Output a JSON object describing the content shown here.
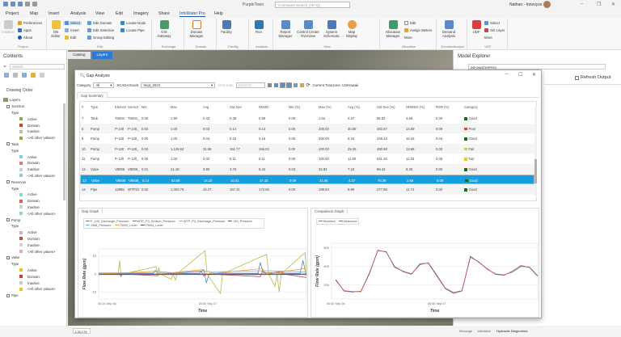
{
  "app": {
    "title": "PurpleTown",
    "search_placeholder": "Command Search (Alt+Q)",
    "user": "Nathan - Innovyze"
  },
  "ribbon_tabs": [
    "Project",
    "Map",
    "Insert",
    "Analysis",
    "View",
    "Edit",
    "Imagery",
    "Share",
    "InfoWater Pro",
    "Help"
  ],
  "ribbon": {
    "project": {
      "label": "Project",
      "initialize": "Initialize",
      "preferences": "Preferences",
      "apps": "Apps",
      "about": "About"
    },
    "edit": {
      "label": "Edit",
      "db_editor": "DB Editor",
      "select": "Select",
      "insert": "Insert",
      "edit": "Edit",
      "edit_domain": "Edit Domain",
      "edit_selection": "Edit Selection",
      "group_editing": "Group Editing",
      "locate_node": "Locate Node",
      "locate_pipe": "Locate Pipe"
    },
    "exchange": {
      "label": "Exchange",
      "gis_gateway": "GIS Gateway"
    },
    "domain": {
      "label": "Domain",
      "domain_manager": "Domain Manager"
    },
    "facility": {
      "label": "Facility",
      "facility": "Facility"
    },
    "analysis": {
      "label": "Analysis",
      "run": "Run"
    },
    "view": {
      "label": "View",
      "report_manager": "Report Manager",
      "control_center": "Control Center Overview",
      "system_schematic": "System Schematic",
      "map_display": "Map Display"
    },
    "allocation": {
      "label": "Allocation",
      "allocation_manager": "Allocation Manager",
      "edit": "Edit",
      "assign_meters": "Assign Meters",
      "more": "More"
    },
    "demand": {
      "label": "DemandAnalyst",
      "demand_analysis": "Demand Analysis"
    },
    "udf": {
      "label": "UDF",
      "udf": "UDF",
      "select": "Select",
      "set_layer": "Set Layer",
      "more": "More"
    }
  },
  "contents": {
    "title": "Contents",
    "search_placeholder": "Search",
    "drawing_order": "Drawing Order",
    "tree": [
      {
        "t": "root",
        "label": "Layers"
      },
      {
        "t": "layer",
        "label": "Junction"
      },
      {
        "t": "type",
        "label": "Type"
      },
      {
        "t": "sym",
        "label": "Active",
        "color": "#9aa83a"
      },
      {
        "t": "sym",
        "label": "Domain",
        "color": "#d83a2a"
      },
      {
        "t": "sym",
        "label": "Inactive",
        "color": "#bbbbbb"
      },
      {
        "t": "sym",
        "label": "<All other values>",
        "color": "#9aa83a"
      },
      {
        "t": "layer",
        "label": "Tank"
      },
      {
        "t": "type",
        "label": "Type"
      },
      {
        "t": "sym",
        "label": "Active",
        "color": "#8ec6e6"
      },
      {
        "t": "sym",
        "label": "Domain",
        "color": "#e07a6a"
      },
      {
        "t": "sym",
        "label": "Inactive",
        "color": "#d0d0d0"
      },
      {
        "t": "sym",
        "label": "<All other values>",
        "color": "#8ec6e6"
      },
      {
        "t": "layer",
        "label": "Reservoir"
      },
      {
        "t": "type",
        "label": "Type"
      },
      {
        "t": "sym",
        "label": "Active",
        "color": "#8ed6c8"
      },
      {
        "t": "sym",
        "label": "Domain",
        "color": "#e0604a"
      },
      {
        "t": "sym",
        "label": "Inactive",
        "color": "#d0d0d0"
      },
      {
        "t": "sym",
        "label": "<All other values>",
        "color": "#8ed6c8"
      },
      {
        "t": "layer",
        "label": "Pump"
      },
      {
        "t": "type",
        "label": "Type"
      },
      {
        "t": "sym",
        "label": "Active",
        "color": "#e7a0d6"
      },
      {
        "t": "sym",
        "label": "Domain",
        "color": "#c0503a"
      },
      {
        "t": "sym",
        "label": "Inactive",
        "color": "#d0d0d0"
      },
      {
        "t": "sym",
        "label": "<All other values>",
        "color": "#e7a0d6"
      },
      {
        "t": "layer",
        "label": "Valve"
      },
      {
        "t": "type",
        "label": "Type"
      },
      {
        "t": "sym",
        "label": "Active",
        "color": "#f0c020"
      },
      {
        "t": "sym",
        "label": "Domain",
        "color": "#d83a2a"
      },
      {
        "t": "sym",
        "label": "Inactive",
        "color": "#c8c8c8"
      },
      {
        "t": "sym",
        "label": "<All other values>",
        "color": "#f0c020"
      },
      {
        "t": "layer",
        "label": "Pipe"
      }
    ]
  },
  "map_tabs": [
    "Catalog",
    "Layers"
  ],
  "explorer": {
    "title": "Model Explorer",
    "model": "INFOWATERPRO",
    "refresh": "Refresh Output"
  },
  "gap": {
    "title": "Gap Analysis",
    "category_label": "Category",
    "category_value": "All",
    "scada_label": "SCADA Event",
    "scada_value": "Sept_2023",
    "start_label": "Start Date",
    "start_value": "9/6/2023",
    "timezone": "Current Timezone: US/Hawaii",
    "summary_tab": "Gap Summary",
    "graph_tab": "Gap Graph",
    "comparison_tab": "Comparison Graph",
    "columns": [
      "#",
      "Type",
      "Elemen",
      "Sensor",
      "Min",
      "Max",
      "Avg",
      "Std Dev",
      "RMSD",
      "Min (%)",
      "Max (%)",
      "Avg (%)",
      "Std Dev (%)",
      "NRMSD (%)",
      "RSR (%)",
      "Category"
    ],
    "rows": [
      [
        "7",
        "Tank",
        "T5004",
        "T5004_",
        "0.00",
        "1.90",
        "0.43",
        "0.38",
        "0.59",
        "0.00",
        "1.62",
        "0.37",
        "85.03",
        "3.68",
        "0.00",
        "Good"
      ],
      [
        "8",
        "Pump",
        "P-140",
        "P-140_",
        "0.00",
        "1.00",
        "0.03",
        "0.14",
        "0.14",
        "0.00",
        "200.00",
        "30.88",
        "482.87",
        "14.59",
        "0.09",
        "Poor"
      ],
      [
        "9",
        "Pump",
        "P-100",
        "P-100_",
        "0.00",
        "1.00",
        "0.04",
        "0.16",
        "0.16",
        "0.00",
        "200.00",
        "9.34",
        "449.32",
        "16.43",
        "0.04",
        "Good"
      ],
      [
        "10",
        "Pump",
        "P-140",
        "P-140_",
        "0.00",
        "1,129.84",
        "31.58",
        "151.77",
        "155.02",
        "0.00",
        "100.00",
        "29.25",
        "480.68",
        "13.68",
        "0.00",
        "Fair"
      ],
      [
        "11",
        "Pump",
        "P-120",
        "P-120_",
        "0.00",
        "1.00",
        "0.02",
        "0.11",
        "0.11",
        "0.00",
        "100.00",
        "11.90",
        "641.33",
        "11.33",
        "0.05",
        "Fair"
      ],
      [
        "12",
        "Valve",
        "V8006",
        "V8006_",
        "0.01",
        "21.18",
        "3.90",
        "3.76",
        "5.42",
        "0.03",
        "32.83",
        "7.19",
        "98.43",
        "8.30",
        "0.00",
        "Good"
      ],
      [
        "13",
        "Valve",
        "V8008",
        "V8008_",
        "0.14",
        "53.68",
        "14.22",
        "10.01",
        "17.43",
        "0.06",
        "21.65",
        "4.37",
        "70.39",
        "3.66",
        "0.00",
        "Good"
      ],
      [
        "14",
        "Pipe",
        "12965",
        "WTP10",
        "0.00",
        "1,003.75",
        "44.27",
        "167.31",
        "173.06",
        "0.00",
        "199.83",
        "9.99",
        "377.96",
        "11.74",
        "0.00",
        "Good"
      ]
    ],
    "selected_row": "13",
    "category_colors": {
      "Good": "#1a6e1a",
      "Poor": "#e8402a",
      "Fair": "#f2c31a"
    }
  },
  "chart_data": [
    {
      "type": "line",
      "ylabel": "Flow Rate (gpm)",
      "xlabel": "Time",
      "ylim": [
        -14,
        14
      ],
      "yticks": [
        -10,
        0,
        10
      ],
      "xlim": [
        "Sep 05 22:00",
        "Sep 07 23:30"
      ],
      "xticks": [
        {
          "t": "Sep 06 00:00",
          "label": "00:00 Sep 06"
        },
        {
          "t": "Sep 07 00:00",
          "label": "00:00 Sep 07"
        }
      ],
      "grid": true,
      "legend": "top",
      "series": [
        {
          "name": "P_140_Discharge_Pressure",
          "color": "#4f81bd",
          "points": [
            [
              "Sep 05 22:00",
              0.2
            ],
            [
              "Sep 06 11:00",
              0.2
            ],
            [
              "Sep 06 11:30",
              2
            ],
            [
              "Sep 06 12:00",
              0.5
            ],
            [
              "Sep 06 22:00",
              0.3
            ],
            [
              "Sep 06 23:00",
              2.5
            ],
            [
              "Sep 06 23:40",
              -5
            ],
            [
              "Sep 07 00:20",
              0.5
            ],
            [
              "Sep 07 12:00",
              0.4
            ],
            [
              "Sep 07 12:30",
              6.5
            ],
            [
              "Sep 07 13:10",
              0.8
            ],
            [
              "Sep 07 22:00",
              0.3
            ],
            [
              "Sep 07 22:40",
              7.5
            ],
            [
              "Sep 07 23:30",
              -1
            ]
          ]
        },
        {
          "name": "WTP_P3_Suction_Pressure",
          "color": "#c0504d",
          "points": [
            [
              "Sep 05 22:00",
              0
            ],
            [
              "Sep 06 03:00",
              0
            ],
            [
              "Sep 06 03:20",
              -1.5
            ],
            [
              "Sep 06 03:40",
              0
            ],
            [
              "Sep 06 12:00",
              -1
            ],
            [
              "Sep 06 12:30",
              0
            ],
            [
              "Sep 06 22:30",
              1.5
            ],
            [
              "Sep 06 23:00",
              -1
            ],
            [
              "Sep 07 00:00",
              0
            ],
            [
              "Sep 07 12:30",
              -1.5
            ],
            [
              "Sep 07 13:00",
              1.5
            ],
            [
              "Sep 07 14:00",
              0
            ],
            [
              "Sep 07 17:30",
              1.5
            ],
            [
              "Sep 07 18:00",
              0
            ],
            [
              "Sep 07 23:30",
              -2
            ]
          ]
        },
        {
          "name": "WTP_P3_Discharge_Pressure",
          "color": "#b8b94c",
          "points": [
            [
              "Sep 05 22:00",
              0
            ],
            [
              "Sep 06 02:40",
              0
            ],
            [
              "Sep 06 03:00",
              7.5
            ],
            [
              "Sep 06 03:20",
              -1
            ],
            [
              "Sep 06 03:40",
              0
            ],
            [
              "Sep 06 11:40",
              4
            ],
            [
              "Sep 06 12:00",
              0
            ],
            [
              "Sep 06 12:20",
              3.5
            ],
            [
              "Sep 06 12:40",
              0
            ],
            [
              "Sep 06 15:20",
              -3
            ],
            [
              "Sep 06 15:40",
              0
            ],
            [
              "Sep 06 16:20",
              -3.5
            ],
            [
              "Sep 06 16:40",
              0
            ],
            [
              "Sep 06 23:20",
              13
            ],
            [
              "Sep 06 23:50",
              0
            ],
            [
              "Sep 07 03:00",
              -11
            ],
            [
              "Sep 07 03:30",
              0
            ],
            [
              "Sep 07 14:00",
              11
            ],
            [
              "Sep 07 14:30",
              0
            ],
            [
              "Sep 07 16:00",
              -7
            ],
            [
              "Sep 07 16:30",
              0
            ],
            [
              "Sep 07 17:00",
              -10
            ],
            [
              "Sep 07 17:30",
              0
            ],
            [
              "Sep 07 23:10",
              12
            ],
            [
              "Sep 07 23:30",
              0
            ]
          ]
        },
        {
          "name": "J40_Pressure",
          "color": "#6a5a9a",
          "points": [
            [
              "Sep 05 22:00",
              0
            ],
            [
              "Sep 07 23:30",
              0
            ]
          ]
        },
        {
          "name": "J968_Pressure",
          "color": "#7fb0d8",
          "points": [
            [
              "Sep 05 22:00",
              0.6
            ],
            [
              "Sep 06 11:00",
              0.6
            ],
            [
              "Sep 06 11:40",
              1.5
            ],
            [
              "Sep 06 16:00",
              0.6
            ],
            [
              "Sep 06 23:00",
              1.8
            ],
            [
              "Sep 07 01:00",
              1.2
            ],
            [
              "Sep 07 13:00",
              1.8
            ],
            [
              "Sep 07 20:00",
              1.5
            ],
            [
              "Sep 07 23:30",
              1
            ]
          ]
        },
        {
          "name": "T5000_Level",
          "color": "#f0a030",
          "points": [
            [
              "Sep 05 22:00",
              0
            ],
            [
              "Sep 06 11:40",
              1.5
            ],
            [
              "Sep 06 12:30",
              0
            ],
            [
              "Sep 06 23:00",
              2.5
            ],
            [
              "Sep 06 23:40",
              0
            ],
            [
              "Sep 07 13:00",
              3
            ],
            [
              "Sep 07 14:00",
              0
            ],
            [
              "Sep 07 23:00",
              3
            ],
            [
              "Sep 07 23:30",
              0
            ]
          ]
        },
        {
          "name": "T5004_Level",
          "color": "#44546a",
          "points": [
            [
              "Sep 05 22:00",
              -0.3
            ],
            [
              "Sep 07 23:30",
              -0.3
            ]
          ]
        }
      ]
    },
    {
      "type": "line",
      "ylabel": "Flow Rate (gpm)",
      "xlabel": "Time",
      "ylim": [
        50,
        650
      ],
      "yticks": [
        200,
        400,
        600
      ],
      "xlim": [
        "Sep 05 23:00",
        "Sep 07 24:00"
      ],
      "xticks": [
        {
          "t": "Sep 06 00:00",
          "label": "00:00 Sep 06"
        },
        {
          "t": "Sep 07 00:00",
          "label": "00:00 Sep 07"
        }
      ],
      "grid": true,
      "legend": "top-left",
      "times": [
        "Sep 06 00:00",
        "Sep 06 02:00",
        "Sep 06 04:00",
        "Sep 06 06:00",
        "Sep 06 08:00",
        "Sep 06 10:00",
        "Sep 06 12:00",
        "Sep 06 14:00",
        "Sep 06 16:00",
        "Sep 06 18:00",
        "Sep 06 20:00",
        "Sep 06 22:00",
        "Sep 07 00:00",
        "Sep 07 02:00",
        "Sep 07 04:00",
        "Sep 07 06:00",
        "Sep 07 08:00",
        "Sep 07 10:00",
        "Sep 07 12:00",
        "Sep 07 14:00",
        "Sep 07 16:00",
        "Sep 07 18:00",
        "Sep 07 20:00",
        "Sep 07 22:00",
        "Sep 07 24:00"
      ],
      "series": [
        {
          "name": "Modeled",
          "color": "#4f81bd",
          "values": [
            250,
            140,
            130,
            130,
            330,
            570,
            560,
            390,
            350,
            320,
            420,
            440,
            310,
            170,
            120,
            140,
            500,
            450,
            370,
            320,
            310,
            340,
            400,
            395,
            300
          ]
        },
        {
          "name": "Measured",
          "color": "#c0504d",
          "values": [
            260,
            135,
            125,
            135,
            320,
            575,
            555,
            400,
            345,
            315,
            430,
            435,
            300,
            165,
            110,
            135,
            510,
            445,
            375,
            315,
            305,
            350,
            410,
            390,
            295
          ]
        }
      ]
    }
  ],
  "status": {
    "scale": "1:28,176",
    "tabs": [
      "Message",
      "Validation",
      "Hydraulic Diagnostics"
    ]
  }
}
